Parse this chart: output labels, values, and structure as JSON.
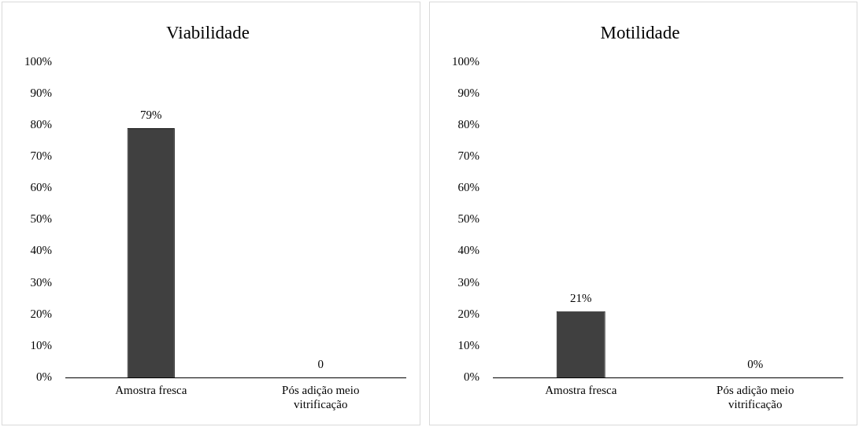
{
  "chart_data": [
    {
      "type": "bar",
      "title": "Viabilidade",
      "categories": [
        "Amostra fresca",
        "Pós adição meio vitrificação"
      ],
      "values": [
        79,
        0
      ],
      "color": "#404040",
      "value_labels": [
        "79%",
        "0"
      ],
      "ylim": [
        0,
        100
      ],
      "yticks": [
        {
          "value": 0,
          "label": "0%"
        },
        {
          "value": 10,
          "label": "10%"
        },
        {
          "value": 20,
          "label": "20%"
        },
        {
          "value": 30,
          "label": "30%"
        },
        {
          "value": 40,
          "label": "40%"
        },
        {
          "value": 50,
          "label": "50%"
        },
        {
          "value": 60,
          "label": "60%"
        },
        {
          "value": 70,
          "label": "70%"
        },
        {
          "value": 80,
          "label": "80%"
        },
        {
          "value": 90,
          "label": "90%"
        },
        {
          "value": 100,
          "label": "100%"
        }
      ],
      "grid": false,
      "legend": false
    },
    {
      "type": "bar",
      "title": "Motilidade",
      "categories": [
        "Amostra fresca",
        "Pós adição meio vitrificação"
      ],
      "values": [
        21,
        0
      ],
      "color": "#404040",
      "value_labels": [
        "21%",
        "0%"
      ],
      "ylim": [
        0,
        100
      ],
      "yticks": [
        {
          "value": 0,
          "label": "0%"
        },
        {
          "value": 10,
          "label": "10%"
        },
        {
          "value": 20,
          "label": "20%"
        },
        {
          "value": 30,
          "label": "30%"
        },
        {
          "value": 40,
          "label": "40%"
        },
        {
          "value": 50,
          "label": "50%"
        },
        {
          "value": 60,
          "label": "60%"
        },
        {
          "value": 70,
          "label": "70%"
        },
        {
          "value": 80,
          "label": "80%"
        },
        {
          "value": 90,
          "label": "90%"
        },
        {
          "value": 100,
          "label": "100%"
        }
      ],
      "grid": false,
      "legend": false
    }
  ]
}
